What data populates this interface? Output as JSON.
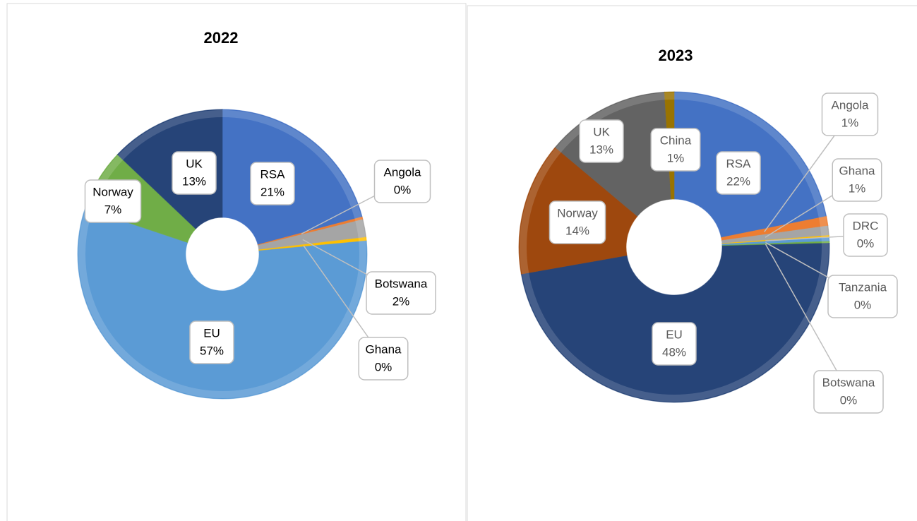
{
  "chart_data": [
    {
      "type": "doughnut",
      "title": "2022",
      "categories": [
        "RSA",
        "Angola",
        "Botswana",
        "Ghana",
        "EU",
        "Norway",
        "UK"
      ],
      "values": [
        21,
        0.3,
        2,
        0.4,
        57,
        7,
        13
      ],
      "value_labels": [
        "21%",
        "0%",
        "2%",
        "0%",
        "57%",
        "7%",
        "13%"
      ],
      "colors": [
        "#4472c4",
        "#ed7d31",
        "#a5a5a5",
        "#ffc000",
        "#5b9bd5",
        "#70ad47",
        "#264478"
      ]
    },
    {
      "type": "doughnut",
      "title": "2023",
      "categories": [
        "RSA",
        "Angola",
        "Ghana",
        "DRC",
        "Tanzania",
        "Botswana",
        "EU",
        "Norway",
        "UK",
        "China"
      ],
      "values": [
        22,
        1,
        1,
        0.2,
        0.4,
        0.2,
        48,
        14,
        13,
        1
      ],
      "value_labels": [
        "22%",
        "1%",
        "1%",
        "0%",
        "0%",
        "0%",
        "48%",
        "14%",
        "13%",
        "1%"
      ],
      "colors": [
        "#4472c4",
        "#ed7d31",
        "#a5a5a5",
        "#ffc000",
        "#5b9bd5",
        "#70ad47",
        "#264478",
        "#9e480e",
        "#636363",
        "#997300"
      ]
    }
  ]
}
